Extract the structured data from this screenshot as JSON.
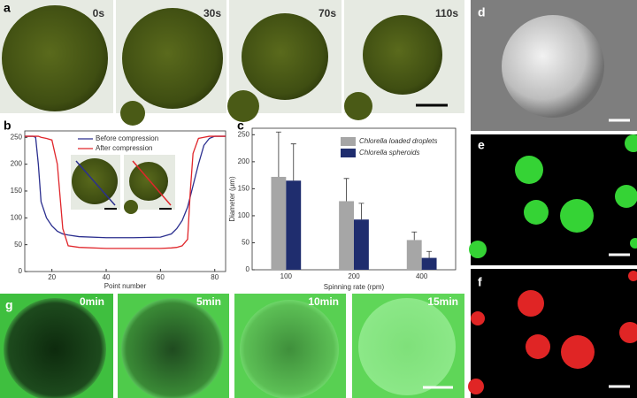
{
  "panel_a": {
    "label": "a",
    "frames": [
      "0s",
      "30s",
      "70s",
      "110s"
    ]
  },
  "chart_data": [
    {
      "label": "b",
      "type": "line",
      "xlabel": "Point number",
      "x": [
        10,
        13,
        14,
        15,
        16,
        18,
        20,
        22,
        24,
        26,
        30,
        40,
        50,
        60,
        64,
        66,
        68,
        70,
        71,
        72,
        74,
        76,
        78,
        80,
        84
      ],
      "series": [
        {
          "name": "Before compression",
          "color": "#2b2f8f",
          "values": [
            252,
            252,
            250,
            200,
            130,
            100,
            85,
            75,
            70,
            68,
            65,
            63,
            63,
            64,
            70,
            80,
            95,
            120,
            140,
            160,
            200,
            235,
            248,
            252,
            252
          ]
        },
        {
          "name": "After compression",
          "color": "#e0262b",
          "values": [
            252,
            252,
            252,
            252,
            250,
            248,
            245,
            200,
            80,
            48,
            45,
            43,
            43,
            43,
            44,
            45,
            48,
            60,
            150,
            220,
            248,
            250,
            252,
            252,
            252
          ]
        }
      ],
      "xlim": [
        10,
        84
      ],
      "xticks": [
        20,
        40,
        60,
        80
      ],
      "ylim": [
        0,
        262
      ],
      "yticks": [
        0,
        50,
        100,
        150,
        200,
        250
      ],
      "grid": false
    },
    {
      "label": "c",
      "type": "bar",
      "xlabel": "Spinning rate (rpm)",
      "ylabel": "Diameter (μm)",
      "categories": [
        "100",
        "200",
        "400"
      ],
      "series": [
        {
          "name": "Chlorella loaded droplets",
          "color": "#a6a6a6",
          "values": [
            172,
            127,
            55
          ],
          "errors": [
            83,
            42,
            15
          ]
        },
        {
          "name": "Chlorella spheroids",
          "color": "#1f2d6e",
          "values": [
            165,
            93,
            22
          ],
          "errors": [
            68,
            30,
            12
          ]
        }
      ],
      "ylim": [
        0,
        262
      ],
      "yticks": [
        0,
        50,
        100,
        150,
        200,
        250
      ],
      "grid": false
    }
  ],
  "panel_d": {
    "label": "d"
  },
  "panel_e": {
    "label": "e"
  },
  "panel_f": {
    "label": "f"
  },
  "panel_g": {
    "label": "g",
    "frames": [
      "0min",
      "5min",
      "10min",
      "15min"
    ]
  }
}
